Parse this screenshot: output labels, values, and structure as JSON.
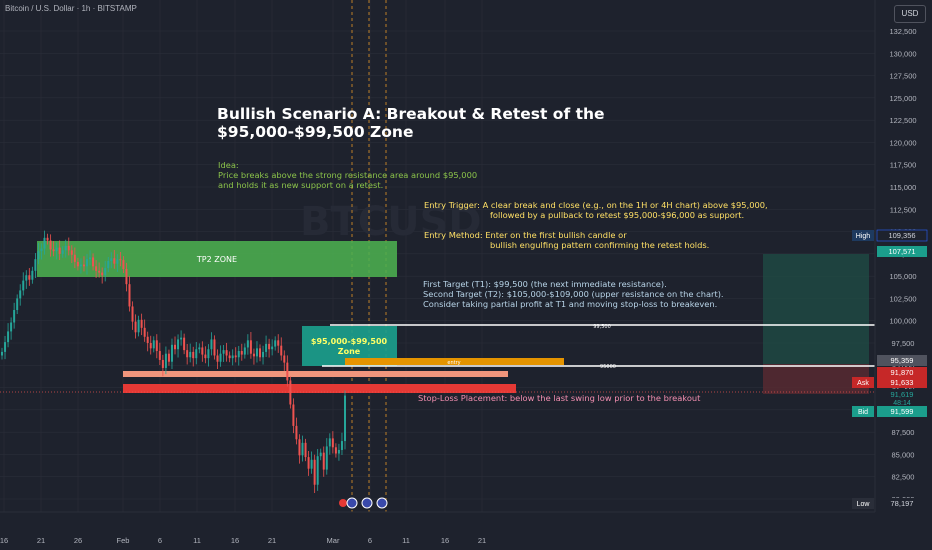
{
  "header": {
    "symbol": "Bitcoin / U.S. Dollar · 1h · BITSTAMP",
    "currency": "USD"
  },
  "colors": {
    "background": "#1e222d",
    "grid": "#2a2e39",
    "candle_up": "#26a69a",
    "candle_down": "#ef5350",
    "tp2": "#4caf50",
    "zone": "#1b9e8c",
    "entry": "#e59400",
    "stoploss": "#e53935",
    "support": "#f0957c",
    "title": "#ffffff",
    "idea": "#8bc34a",
    "yellow": "#ffe066",
    "target": "#b8d4e8",
    "sl_text": "#f48fb1"
  },
  "chart_data": {
    "type": "line",
    "title": "Bullish Scenario A: Breakout & Retest of the $95,000-$99,500 Zone",
    "series": [
      {
        "values": [
          96500,
          97600,
          98800,
          99800,
          101200,
          102500,
          103400,
          104500,
          105100,
          104600,
          105600,
          106900,
          107800,
          108100,
          109300,
          109000,
          108000,
          107800,
          108200,
          107500,
          107900,
          108400,
          107900,
          107400,
          106600,
          106100,
          106300,
          106100,
          106900,
          107100,
          106100,
          105600,
          105400,
          105100,
          105900,
          106700,
          107000,
          106400,
          106900,
          106800,
          105800,
          104100,
          101600,
          99900,
          98700,
          100100,
          99200,
          98200,
          97500,
          96900,
          97800,
          96600,
          95600,
          94700,
          96300,
          95400,
          97300,
          96800,
          97900,
          98100,
          96700,
          95900,
          96500,
          95800,
          96800,
          97000,
          96200,
          95800,
          96800,
          97900,
          96100,
          95400,
          96300,
          96700,
          96100,
          95800,
          96100,
          95900,
          96600,
          96200,
          97000,
          97800,
          96300,
          96000,
          96900,
          95900,
          96500,
          97400,
          96800,
          97100,
          97800,
          97200,
          96100,
          95300,
          93300,
          90600,
          88200,
          86700,
          84900,
          86300,
          84700,
          83400,
          84400,
          81600,
          84800,
          85200,
          83300,
          85900,
          86800,
          85800,
          85100,
          85500,
          86500,
          91600
        ]
      }
    ],
    "x_ticks": [
      "16",
      "21",
      "26",
      "Feb",
      "6",
      "11",
      "16",
      "21",
      "Mar",
      "6",
      "11",
      "16",
      "21"
    ],
    "y_ticks": [
      "132,500",
      "130,000",
      "127,500",
      "125,000",
      "122,500",
      "120,000",
      "117,500",
      "115,000",
      "112,500",
      "110,000",
      "107,500",
      "105,000",
      "102,500",
      "100,000",
      "97,500",
      "95,000",
      "92,500",
      "90,000",
      "87,500",
      "85,000",
      "82,500",
      "80,000"
    ],
    "ylim": [
      78000,
      134000
    ],
    "price_labels": [
      {
        "tag": "High",
        "value": "109,356"
      },
      {
        "tag": "",
        "value": "107,571"
      },
      {
        "tag": "",
        "value": "95,359"
      },
      {
        "tag": "",
        "value": "91,870"
      },
      {
        "tag": "Ask",
        "value": "91,633"
      },
      {
        "tag": "",
        "value": "91,619",
        "sub": "48:14"
      },
      {
        "tag": "Bid",
        "value": "91,599"
      },
      {
        "tag": "Low",
        "value": "78,197"
      }
    ],
    "annotations": {
      "title_line1": "Bullish Scenario A: Breakout & Retest of the",
      "title_line2": "$95,000-$99,500 Zone",
      "idea_label": "Idea:",
      "idea_line1": "Price breaks above the strong resistance area around $95,000",
      "idea_line2": "and holds it as new support on a retest.",
      "trigger_line1": "Entry Trigger: A clear break and close (e.g., on the 1H or 4H chart) above $95,000,",
      "trigger_line2": "followed by a pullback to retest $95,000-$96,000 as support.",
      "method_line1": "Entry Method: Enter on the first bullish candle or",
      "method_line2": "bullish engulfing pattern confirming the retest holds.",
      "target_line1": "First Target (T1): $99,500 (the next immediate resistance).",
      "target_line2": "Second Target (T2): $105,000-$109,000 (upper resistance on the chart).",
      "target_line3": "Consider taking partial profit at T1 and moving stop-loss to breakeven.",
      "tp2_label": "TP2 ZONE",
      "zone_line1": "$95,000-$99,500",
      "zone_line2": "Zone",
      "entry_label": "entry",
      "line_99500": "99,500",
      "line_95000": "95000",
      "stoploss_text": "Stop-Loss Placement: below the last swing low prior to the breakout"
    }
  }
}
